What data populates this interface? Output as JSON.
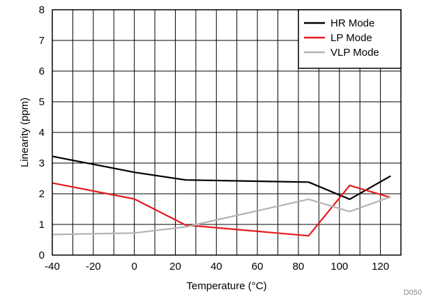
{
  "chart_data": {
    "type": "line",
    "title": "",
    "xlabel": "Temperature (°C)",
    "ylabel": "Linearity (ppm)",
    "xlim": [
      -40,
      130
    ],
    "ylim": [
      0,
      8
    ],
    "x_ticks": [
      -40,
      -20,
      0,
      20,
      40,
      60,
      80,
      100,
      120
    ],
    "y_ticks": [
      0,
      1,
      2,
      3,
      4,
      5,
      6,
      7,
      8
    ],
    "grid": true,
    "legend_position": "top-right",
    "series": [
      {
        "name": "HR Mode",
        "color": "#000000",
        "x": [
          -40,
          0,
          25,
          85,
          105,
          125
        ],
        "y": [
          3.22,
          2.7,
          2.45,
          2.38,
          1.82,
          2.58
        ]
      },
      {
        "name": "LP Mode",
        "color": "#e41a1c",
        "x": [
          -40,
          0,
          25,
          85,
          105,
          125
        ],
        "y": [
          2.35,
          1.83,
          0.98,
          0.63,
          2.27,
          1.88
        ]
      },
      {
        "name": "VLP Mode",
        "color": "#b3b3b3",
        "x": [
          -40,
          0,
          25,
          85,
          105,
          125
        ],
        "y": [
          0.67,
          0.72,
          0.92,
          1.82,
          1.42,
          1.9
        ]
      }
    ],
    "figure_code": "D050"
  }
}
